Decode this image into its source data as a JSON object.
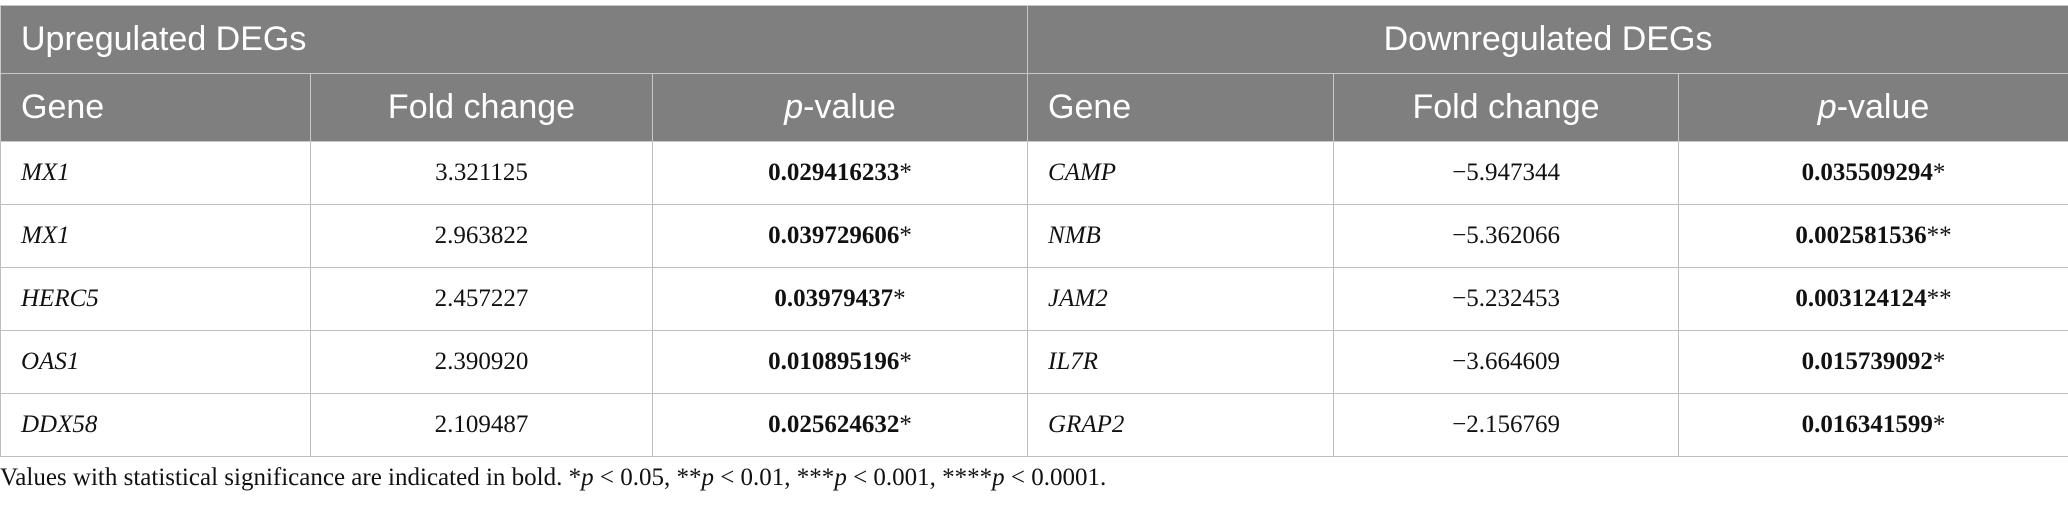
{
  "table": {
    "groups": [
      "Upregulated DEGs",
      "Downregulated DEGs"
    ],
    "columns": [
      "Gene",
      "Fold change",
      "p-value",
      "Gene",
      "Fold change",
      "p-value"
    ],
    "rows": [
      [
        "MX1",
        "3.321125",
        "0.029416233",
        "*",
        "CAMP",
        "−5.947344",
        "0.035509294",
        "*"
      ],
      [
        "MX1",
        "2.963822",
        "0.039729606",
        "*",
        "NMB",
        "−5.362066",
        "0.002581536",
        "**"
      ],
      [
        "HERC5",
        "2.457227",
        "0.03979437",
        "*",
        "JAM2",
        "−5.232453",
        "0.003124124",
        "**"
      ],
      [
        "OAS1",
        "2.390920",
        "0.010895196",
        "*",
        "IL7R",
        "−3.664609",
        "0.015739092",
        "*"
      ],
      [
        "DDX58",
        "2.109487",
        "0.025624632",
        "*",
        "GRAP2",
        "−2.156769",
        "0.016341599",
        "*"
      ]
    ],
    "footnote": "Values with statistical significance are indicated in bold. *p < 0.05, **p < 0.01, ***p < 0.001, ****p < 0.0001."
  }
}
